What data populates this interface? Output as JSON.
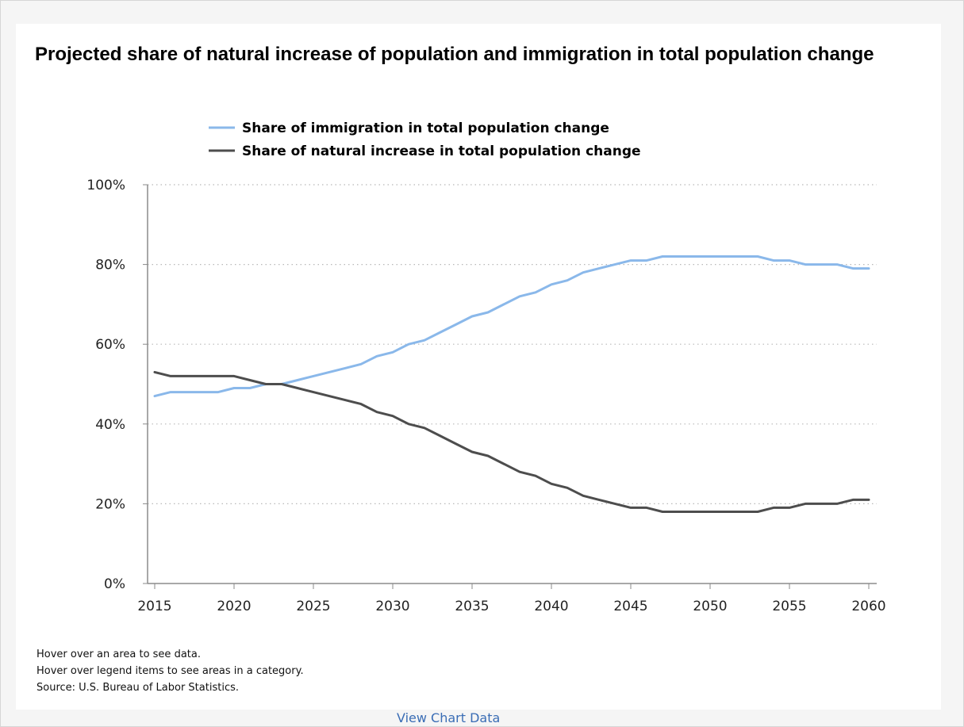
{
  "chart_data": {
    "type": "line",
    "title": "Projected share of natural increase of population and immigration in total population change",
    "xlabel": "",
    "ylabel": "",
    "x": [
      2015,
      2016,
      2017,
      2018,
      2019,
      2020,
      2021,
      2022,
      2023,
      2024,
      2025,
      2026,
      2027,
      2028,
      2029,
      2030,
      2031,
      2032,
      2033,
      2034,
      2035,
      2036,
      2037,
      2038,
      2039,
      2040,
      2041,
      2042,
      2043,
      2044,
      2045,
      2046,
      2047,
      2048,
      2049,
      2050,
      2051,
      2052,
      2053,
      2054,
      2055,
      2056,
      2057,
      2058,
      2059,
      2060
    ],
    "xlim": [
      2015,
      2060
    ],
    "ylim": [
      0,
      100
    ],
    "x_ticks": [
      "2015",
      "2020",
      "2025",
      "2030",
      "2035",
      "2040",
      "2045",
      "2050",
      "2055",
      "2060"
    ],
    "y_ticks": [
      "0%",
      "20%",
      "40%",
      "60%",
      "80%",
      "100%"
    ],
    "grid": true,
    "legend_position": "top",
    "series": [
      {
        "name": "Share of immigration in total population change",
        "color": "#8ab8ea",
        "values": [
          47,
          48,
          48,
          48,
          48,
          49,
          49,
          50,
          50,
          51,
          52,
          53,
          54,
          55,
          57,
          58,
          60,
          61,
          63,
          65,
          67,
          68,
          70,
          72,
          73,
          75,
          76,
          78,
          79,
          80,
          81,
          81,
          82,
          82,
          82,
          82,
          82,
          82,
          82,
          81,
          81,
          80,
          80,
          80,
          79,
          79
        ]
      },
      {
        "name": "Share of natural increase in total population change",
        "color": "#4d4d4d",
        "values": [
          53,
          52,
          52,
          52,
          52,
          52,
          51,
          50,
          50,
          49,
          48,
          47,
          46,
          45,
          43,
          42,
          40,
          39,
          37,
          35,
          33,
          32,
          30,
          28,
          27,
          25,
          24,
          22,
          21,
          20,
          19,
          19,
          18,
          18,
          18,
          18,
          18,
          18,
          18,
          19,
          19,
          20,
          20,
          20,
          21,
          21
        ]
      }
    ]
  },
  "notes": {
    "hover_area": "Hover over an area to see data.",
    "hover_legend": "Hover over legend items to see areas in a category.",
    "source": "Source: U.S. Bureau of Labor Statistics."
  },
  "footer_link": "View Chart Data"
}
